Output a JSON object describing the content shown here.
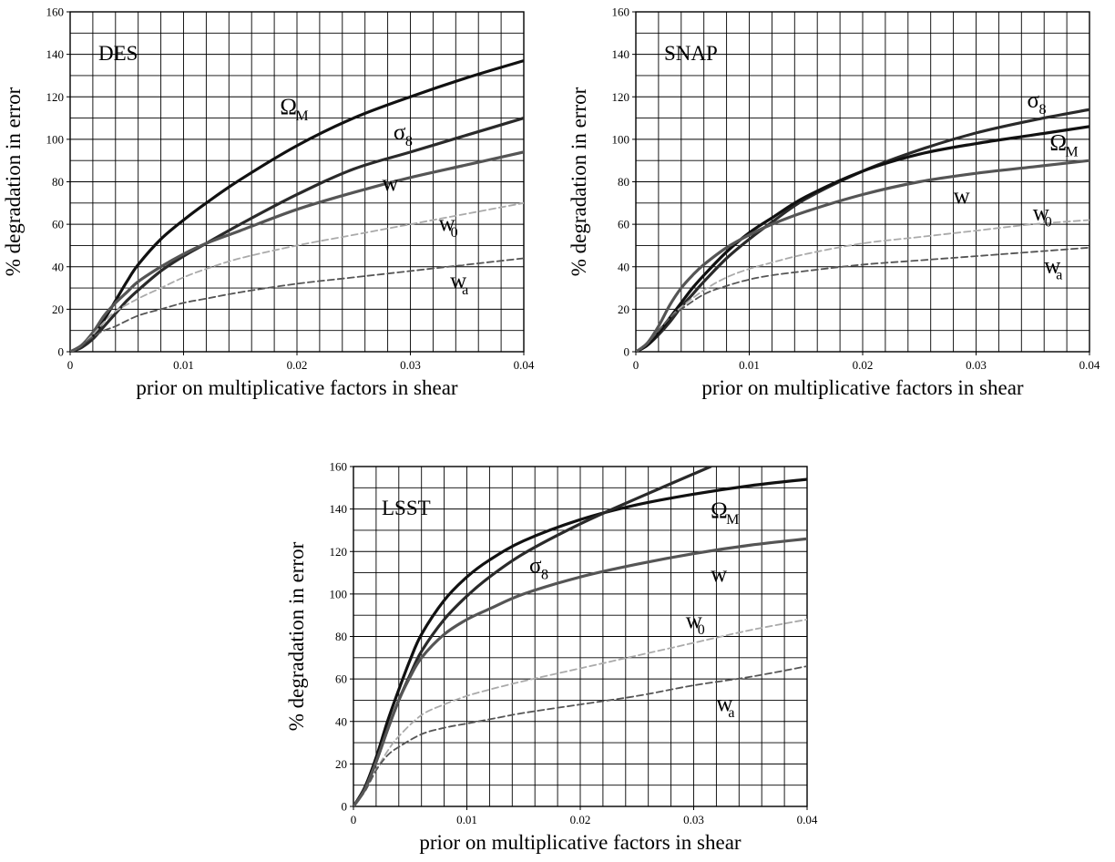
{
  "chart_data": [
    {
      "type": "line",
      "label": "DES",
      "xlabel": "prior on multiplicative factors in shear",
      "ylabel": "% degradation in error",
      "xlim": [
        0,
        0.04
      ],
      "ylim": [
        0,
        160
      ],
      "xticks": [
        "0",
        "0.01",
        "0.02",
        "0.03",
        "0.04"
      ],
      "yticks": [
        "0",
        "20",
        "40",
        "60",
        "80",
        "100",
        "120",
        "140",
        "160"
      ],
      "grid": true,
      "series": [
        {
          "name": "Ω_M",
          "label_main": "Ω",
          "label_sub": "M",
          "color": "#111111",
          "dashed": false,
          "x": [
            0,
            0.001,
            0.002,
            0.003,
            0.004,
            0.005,
            0.006,
            0.008,
            0.01,
            0.012,
            0.015,
            0.02,
            0.025,
            0.03,
            0.035,
            0.04
          ],
          "y": [
            0,
            2,
            7,
            15,
            24,
            33,
            41,
            53,
            62,
            70,
            81,
            97,
            110,
            120,
            129,
            137
          ]
        },
        {
          "name": "σ_8",
          "label_main": "σ",
          "label_sub": "8",
          "color": "#2a2a2a",
          "dashed": false,
          "x": [
            0,
            0.001,
            0.002,
            0.003,
            0.004,
            0.005,
            0.006,
            0.008,
            0.01,
            0.012,
            0.015,
            0.02,
            0.025,
            0.03,
            0.035,
            0.04
          ],
          "y": [
            0,
            2,
            6,
            12,
            18,
            24,
            29,
            38,
            45,
            51,
            60,
            74,
            86,
            94,
            102,
            110
          ]
        },
        {
          "name": "w",
          "label_main": "w",
          "label_sub": "",
          "color": "#555555",
          "dashed": false,
          "x": [
            0,
            0.001,
            0.002,
            0.003,
            0.004,
            0.005,
            0.006,
            0.008,
            0.01,
            0.012,
            0.015,
            0.02,
            0.025,
            0.03,
            0.035,
            0.04
          ],
          "y": [
            0,
            3,
            9,
            17,
            23,
            28,
            33,
            40,
            46,
            51,
            57,
            67,
            75,
            82,
            88,
            94
          ]
        },
        {
          "name": "w_0",
          "label_main": "w",
          "label_sub": "0",
          "color": "#aaaaaa",
          "dashed": true,
          "x": [
            0,
            0.001,
            0.002,
            0.003,
            0.004,
            0.006,
            0.008,
            0.01,
            0.012,
            0.015,
            0.02,
            0.025,
            0.03,
            0.035,
            0.04
          ],
          "y": [
            0,
            3,
            8,
            14,
            19,
            25,
            30,
            35,
            39,
            44,
            50,
            55,
            60,
            65,
            70
          ]
        },
        {
          "name": "w_a",
          "label_main": "w",
          "label_sub": "a",
          "color": "#555555",
          "dashed": true,
          "x": [
            0,
            0.001,
            0.002,
            0.003,
            0.004,
            0.006,
            0.008,
            0.01,
            0.012,
            0.015,
            0.02,
            0.025,
            0.03,
            0.035,
            0.04
          ],
          "y": [
            0,
            3,
            7,
            10,
            12,
            17,
            20,
            23,
            25,
            28,
            32,
            35,
            38,
            41,
            44
          ]
        }
      ]
    },
    {
      "type": "line",
      "label": "SNAP",
      "xlabel": "prior on multiplicative factors in shear",
      "ylabel": "% degradation in error",
      "xlim": [
        0,
        0.04
      ],
      "ylim": [
        0,
        160
      ],
      "xticks": [
        "0",
        "0.01",
        "0.02",
        "0.03",
        "0.04"
      ],
      "yticks": [
        "0",
        "20",
        "40",
        "60",
        "80",
        "100",
        "120",
        "140",
        "160"
      ],
      "grid": true,
      "series": [
        {
          "name": "σ_8",
          "label_main": "σ",
          "label_sub": "8",
          "color": "#2a2a2a",
          "dashed": false,
          "x": [
            0,
            0.001,
            0.002,
            0.003,
            0.004,
            0.005,
            0.006,
            0.008,
            0.01,
            0.012,
            0.015,
            0.02,
            0.025,
            0.03,
            0.035,
            0.04
          ],
          "y": [
            0,
            3,
            8,
            14,
            21,
            27,
            33,
            44,
            53,
            61,
            72,
            85,
            95,
            103,
            109,
            114
          ]
        },
        {
          "name": "Ω_M",
          "label_main": "Ω",
          "label_sub": "M",
          "color": "#111111",
          "dashed": false,
          "x": [
            0,
            0.001,
            0.002,
            0.003,
            0.004,
            0.005,
            0.006,
            0.008,
            0.01,
            0.012,
            0.015,
            0.02,
            0.025,
            0.03,
            0.035,
            0.04
          ],
          "y": [
            0,
            3,
            9,
            16,
            23,
            30,
            36,
            47,
            56,
            63,
            73,
            85,
            93,
            98,
            102,
            106
          ]
        },
        {
          "name": "w",
          "label_main": "w",
          "label_sub": "",
          "color": "#555555",
          "dashed": false,
          "x": [
            0,
            0.001,
            0.002,
            0.003,
            0.004,
            0.005,
            0.006,
            0.008,
            0.01,
            0.012,
            0.015,
            0.02,
            0.025,
            0.03,
            0.035,
            0.04
          ],
          "y": [
            0,
            4,
            12,
            22,
            30,
            36,
            41,
            49,
            55,
            60,
            66,
            74,
            80,
            84,
            87,
            90
          ]
        },
        {
          "name": "w_0",
          "label_main": "w",
          "label_sub": "0",
          "color": "#aaaaaa",
          "dashed": true,
          "x": [
            0,
            0.001,
            0.002,
            0.003,
            0.004,
            0.006,
            0.008,
            0.01,
            0.012,
            0.015,
            0.02,
            0.025,
            0.03,
            0.035,
            0.04
          ],
          "y": [
            0,
            4,
            10,
            16,
            21,
            29,
            35,
            39,
            42,
            46,
            51,
            54,
            57,
            60,
            62
          ]
        },
        {
          "name": "w_a",
          "label_main": "w",
          "label_sub": "a",
          "color": "#555555",
          "dashed": true,
          "x": [
            0,
            0.001,
            0.002,
            0.003,
            0.004,
            0.006,
            0.008,
            0.01,
            0.012,
            0.015,
            0.02,
            0.025,
            0.03,
            0.035,
            0.04
          ],
          "y": [
            0,
            4,
            10,
            16,
            20,
            27,
            31,
            34,
            36,
            38,
            41,
            43,
            45,
            47,
            49
          ]
        }
      ]
    },
    {
      "type": "line",
      "label": "LSST",
      "xlabel": "prior on multiplicative factors in shear",
      "ylabel": "% degradation in error",
      "xlim": [
        0,
        0.04
      ],
      "ylim": [
        0,
        160
      ],
      "xticks": [
        "0",
        "0.01",
        "0.02",
        "0.03",
        "0.04"
      ],
      "yticks": [
        "0",
        "20",
        "40",
        "60",
        "80",
        "100",
        "120",
        "140",
        "160"
      ],
      "grid": true,
      "series": [
        {
          "name": "Ω_M",
          "label_main": "Ω",
          "label_sub": "M",
          "color": "#111111",
          "dashed": false,
          "x": [
            0,
            0.001,
            0.002,
            0.003,
            0.004,
            0.005,
            0.006,
            0.008,
            0.01,
            0.012,
            0.015,
            0.02,
            0.025,
            0.03,
            0.035,
            0.04
          ],
          "y": [
            0,
            9,
            23,
            40,
            55,
            69,
            81,
            97,
            108,
            116,
            125,
            135,
            142,
            147,
            151,
            154
          ]
        },
        {
          "name": "σ_8",
          "label_main": "σ",
          "label_sub": "8",
          "color": "#2a2a2a",
          "dashed": false,
          "x": [
            0,
            0.001,
            0.002,
            0.003,
            0.004,
            0.005,
            0.006,
            0.008,
            0.01,
            0.012,
            0.015,
            0.02,
            0.025,
            0.0315
          ],
          "y": [
            0,
            8,
            21,
            36,
            50,
            62,
            73,
            88,
            99,
            108,
            119,
            133,
            145,
            160
          ]
        },
        {
          "name": "w",
          "label_main": "w",
          "label_sub": "",
          "color": "#555555",
          "dashed": false,
          "x": [
            0,
            0.001,
            0.002,
            0.003,
            0.004,
            0.005,
            0.006,
            0.008,
            0.01,
            0.012,
            0.015,
            0.02,
            0.025,
            0.03,
            0.035,
            0.04
          ],
          "y": [
            0,
            8,
            21,
            36,
            50,
            61,
            70,
            81,
            88,
            93,
            100,
            108,
            114,
            119,
            123,
            126
          ]
        },
        {
          "name": "w_0",
          "label_main": "w",
          "label_sub": "0",
          "color": "#aaaaaa",
          "dashed": true,
          "x": [
            0,
            0.001,
            0.002,
            0.003,
            0.004,
            0.006,
            0.008,
            0.01,
            0.012,
            0.015,
            0.02,
            0.025,
            0.03,
            0.035,
            0.04
          ],
          "y": [
            0,
            7,
            17,
            26,
            33,
            43,
            48,
            52,
            55,
            59,
            65,
            71,
            77,
            83,
            88
          ]
        },
        {
          "name": "w_a",
          "label_main": "w",
          "label_sub": "a",
          "color": "#555555",
          "dashed": true,
          "x": [
            0,
            0.001,
            0.002,
            0.003,
            0.004,
            0.006,
            0.008,
            0.01,
            0.012,
            0.015,
            0.02,
            0.025,
            0.03,
            0.035,
            0.04
          ],
          "y": [
            0,
            7,
            17,
            24,
            28,
            34,
            37,
            39,
            41,
            44,
            48,
            52,
            57,
            61,
            66
          ]
        }
      ]
    }
  ]
}
